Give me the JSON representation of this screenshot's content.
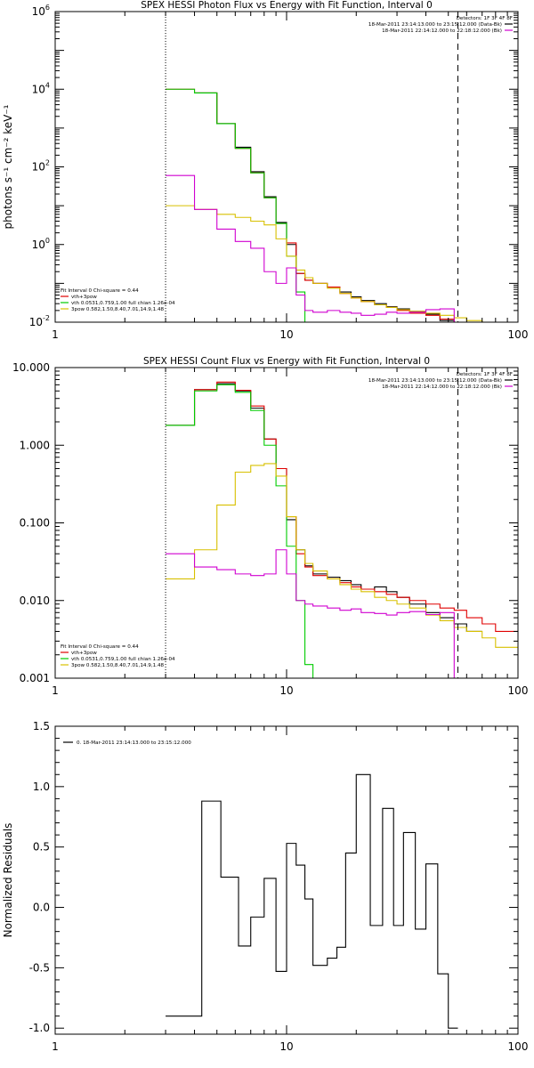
{
  "chart_data": [
    {
      "type": "line",
      "title": "SPEX HESSI Photon Flux vs Energy with Fit Function, Interval 0",
      "ylabel": "photons s⁻¹ cm⁻² keV⁻¹",
      "xlabel": "",
      "xscale": "log",
      "yscale": "log",
      "xlim": [
        1,
        100
      ],
      "ylim": [
        0.01,
        1000000
      ],
      "xticks": [
        {
          "v": 1,
          "label": "1"
        },
        {
          "v": 10,
          "label": "10"
        },
        {
          "v": 100,
          "label": "100"
        }
      ],
      "yticks": [
        {
          "v": 0.01,
          "label": "10",
          "sup": "-2"
        },
        {
          "v": 1,
          "label": "10",
          "sup": "0"
        },
        {
          "v": 100,
          "label": "10",
          "sup": "2"
        },
        {
          "v": 10000,
          "label": "10",
          "sup": "4"
        },
        {
          "v": 1000000,
          "label": "10",
          "sup": "6"
        }
      ],
      "vlines": [
        {
          "x": 3.0,
          "style": "dotted"
        },
        {
          "x": 55.0,
          "style": "dashed"
        }
      ],
      "legend_top": {
        "header": "Detectors: 1F 3F 4F 8F",
        "entries": [
          {
            "text": "18-Mar-2011 23:14:13.000 to 23:15:12.000 (Data-Bk)",
            "color": "#000000"
          },
          {
            "text": "18-Mar-2011 22:14:12.000 to 22:18:12.000 (Bk)",
            "color": "#d000d0"
          }
        ]
      },
      "legend_bottom": {
        "header": "Fit Interval 0   Chi-square = 0.44",
        "entries": [
          {
            "text": "vth+3pow",
            "color": "#e00000"
          },
          {
            "text": "vth 0.0531,0.759,1.00  full chian 1.26e-04",
            "color": "#00cc00"
          },
          {
            "text": "3pow 0.582,1.50,8.40,7.01,14.9,1.48",
            "color": "#d8c000"
          }
        ]
      },
      "edges": [
        3.0,
        4.0,
        5.0,
        6.0,
        7.0,
        8.0,
        9.0,
        10.0,
        11.0,
        12.0,
        13.0,
        15.0,
        17.0,
        19.0,
        21.0,
        24.0,
        27.0,
        30.0,
        34.0,
        40.0,
        46.0,
        53.0,
        60.0,
        70.0,
        80.0,
        100.0
      ],
      "series": [
        {
          "color": "#000000",
          "start": 1,
          "values": [
            8000,
            1300,
            320,
            75,
            17,
            3.7,
            1.0,
            0.18,
            0.12,
            0.1,
            0.08,
            0.06,
            0.045,
            0.036,
            0.03,
            0.025,
            0.022,
            0.019,
            0.016,
            0.011,
            0.01,
            0.01,
            0.01,
            0.01
          ]
        },
        {
          "color": "#e00000",
          "start": 0,
          "values": [
            10000,
            8000,
            1300,
            300,
            70,
            16,
            3.5,
            1.1,
            0.18,
            0.12,
            0.1,
            0.08,
            0.055,
            0.042,
            0.034,
            0.028,
            0.024,
            0.02,
            0.017,
            0.015,
            0.012,
            0.01,
            0.009,
            0.008,
            0.007
          ]
        },
        {
          "color": "#00cc00",
          "start": 0,
          "values": [
            10000,
            8000,
            1300,
            300,
            70,
            16,
            3.5,
            0.5,
            0.06,
            0.01
          ]
        },
        {
          "color": "#d8c000",
          "start": 0,
          "values": [
            10,
            8,
            6,
            5,
            4,
            3.2,
            1.4,
            0.5,
            0.22,
            0.14,
            0.1,
            0.075,
            0.055,
            0.042,
            0.034,
            0.028,
            0.024,
            0.021,
            0.019,
            0.017,
            0.015,
            0.013,
            0.011,
            0.01,
            0.009
          ]
        },
        {
          "color": "#d000d0",
          "start": 0,
          "values": [
            60,
            8,
            2.5,
            1.2,
            0.8,
            0.2,
            0.1,
            0.25,
            0.05,
            0.02,
            0.018,
            0.02,
            0.018,
            0.017,
            0.015,
            0.016,
            0.018,
            0.017,
            0.018,
            0.021,
            0.022,
            0.01
          ]
        }
      ]
    },
    {
      "type": "line",
      "title": "SPEX HESSI Count Flux vs Energy with Fit Function, Interval 0",
      "ylabel": "",
      "xlabel": "",
      "xscale": "log",
      "yscale": "log",
      "xlim": [
        1,
        100
      ],
      "ylim": [
        0.001,
        10
      ],
      "xticks": [
        {
          "v": 1,
          "label": "1"
        },
        {
          "v": 10,
          "label": "10"
        },
        {
          "v": 100,
          "label": "100"
        }
      ],
      "yticks": [
        {
          "v": 0.001,
          "label": "0.001"
        },
        {
          "v": 0.01,
          "label": "0.010"
        },
        {
          "v": 0.1,
          "label": "0.100"
        },
        {
          "v": 1,
          "label": "1.000"
        },
        {
          "v": 10,
          "label": "10.000"
        }
      ],
      "vlines": [
        {
          "x": 3.0,
          "style": "dotted"
        },
        {
          "x": 55.0,
          "style": "dashed"
        }
      ],
      "legend_top": {
        "header": "Detectors: 1F 3F 4F 8F",
        "entries": [
          {
            "text": "18-Mar-2011 23:14:13.000 to 23:15:12.000 (Data-Bk)",
            "color": "#000000"
          },
          {
            "text": "18-Mar-2011 22:14:12.000 to 22:18:12.000 (Bk)",
            "color": "#d000d0"
          }
        ]
      },
      "legend_bottom": {
        "header": "Fit Interval 0   Chi-square = 0.44",
        "entries": [
          {
            "text": "vth+3pow",
            "color": "#e00000"
          },
          {
            "text": "vth 0.0531,0.759,1.00  full chian 1.26e-04",
            "color": "#00cc00"
          },
          {
            "text": "3pow 0.582,1.50,8.40,7.01,14.9,1.48",
            "color": "#d8c000"
          }
        ]
      },
      "edges": [
        3.0,
        4.0,
        5.0,
        6.0,
        7.0,
        8.0,
        9.0,
        10.0,
        11.0,
        12.0,
        13.0,
        15.0,
        17.0,
        19.0,
        21.0,
        24.0,
        27.0,
        30.0,
        34.0,
        40.0,
        46.0,
        53.0,
        60.0,
        70.0,
        80.0,
        100.0
      ],
      "series": [
        {
          "color": "#000000",
          "start": 0,
          "values": [
            1.8,
            5.2,
            6.2,
            5.0,
            3.0,
            1.2,
            0.5,
            0.11,
            0.045,
            0.028,
            0.022,
            0.02,
            0.018,
            0.016,
            0.014,
            0.015,
            0.013,
            0.011,
            0.009,
            0.007,
            0.006,
            0.005,
            0.004
          ]
        },
        {
          "color": "#e00000",
          "start": 0,
          "values": [
            1.8,
            5.2,
            6.5,
            5.1,
            3.2,
            1.2,
            0.5,
            0.12,
            0.04,
            0.027,
            0.021,
            0.019,
            0.017,
            0.015,
            0.014,
            0.013,
            0.012,
            0.011,
            0.01,
            0.009,
            0.008,
            0.0075,
            0.006,
            0.005,
            0.004
          ]
        },
        {
          "color": "#00cc00",
          "start": 0,
          "values": [
            1.8,
            5.0,
            6.0,
            4.8,
            2.8,
            1.0,
            0.3,
            0.05,
            0.01,
            0.0015,
            0.001
          ]
        },
        {
          "color": "#d8c000",
          "start": 0,
          "values": [
            0.019,
            0.045,
            0.17,
            0.45,
            0.55,
            0.58,
            0.4,
            0.12,
            0.045,
            0.03,
            0.024,
            0.019,
            0.016,
            0.014,
            0.013,
            0.011,
            0.01,
            0.009,
            0.008,
            0.0065,
            0.0055,
            0.0045,
            0.004,
            0.0033,
            0.0025
          ]
        },
        {
          "color": "#d000d0",
          "start": 0,
          "values": [
            0.04,
            0.027,
            0.025,
            0.022,
            0.021,
            0.022,
            0.045,
            0.022,
            0.01,
            0.009,
            0.0085,
            0.008,
            0.0075,
            0.0078,
            0.007,
            0.0068,
            0.0065,
            0.007,
            0.0072,
            0.0066,
            0.007,
            0.001
          ]
        }
      ]
    },
    {
      "type": "line",
      "title": "",
      "ylabel": "Normalized Residuals",
      "xlabel": "",
      "xscale": "log",
      "yscale": "linear",
      "xlim": [
        1,
        100
      ],
      "ylim": [
        -1.05,
        1.5
      ],
      "xticks": [
        {
          "v": 1,
          "label": "1"
        },
        {
          "v": 10,
          "label": "10"
        },
        {
          "v": 100,
          "label": "100"
        }
      ],
      "yticks": [
        {
          "v": -1.0,
          "label": "-1.0"
        },
        {
          "v": -0.5,
          "label": "-0.5"
        },
        {
          "v": 0.0,
          "label": "0.0"
        },
        {
          "v": 0.5,
          "label": "0.5"
        },
        {
          "v": 1.0,
          "label": "1.0"
        },
        {
          "v": 1.5,
          "label": "1.5"
        }
      ],
      "legend_top_left": {
        "entries": [
          {
            "text": "0. 18-Mar-2011 23:14:13.000 to 23:15:12.000",
            "color": "#000000"
          }
        ]
      },
      "edges": [
        3.0,
        4.3,
        5.2,
        6.2,
        7.0,
        8.0,
        9.0,
        10.0,
        11.0,
        12.0,
        13.0,
        15.0,
        16.5,
        18.0,
        20.0,
        23.0,
        26.0,
        29.0,
        32.0,
        36.0,
        40.0,
        45.0,
        50.0,
        55.0,
        60.0
      ],
      "series": [
        {
          "color": "#000000",
          "start": 0,
          "values": [
            -0.9,
            0.88,
            0.25,
            -0.32,
            -0.08,
            0.24,
            -0.53,
            0.53,
            0.35,
            0.07,
            -0.48,
            -0.42,
            -0.33,
            0.45,
            1.1,
            -0.15,
            0.82,
            -0.15,
            0.62,
            -0.18,
            0.36,
            -0.55,
            -1.0
          ]
        }
      ]
    }
  ]
}
